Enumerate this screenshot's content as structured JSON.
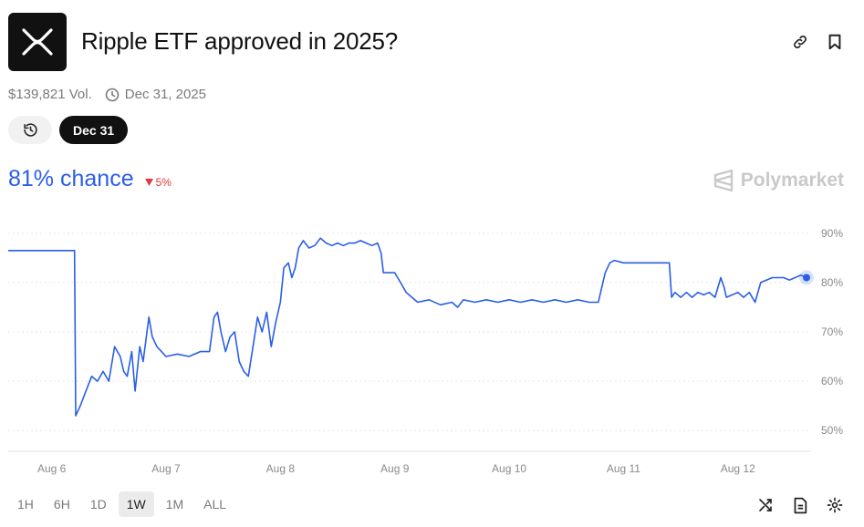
{
  "market": {
    "title": "Ripple ETF approved in 2025?",
    "logo_icon": "xrp-logo-icon",
    "volume": "$139,821 Vol.",
    "end_date": "Dec 31, 2025",
    "active_date_pill": "Dec 31",
    "chance": "81% chance",
    "change": "5%",
    "change_direction": "down",
    "brand": "Polymarket"
  },
  "header_icons": [
    "link-icon",
    "bookmark-icon"
  ],
  "time_ranges": {
    "items": [
      "1H",
      "6H",
      "1D",
      "1W",
      "1M",
      "ALL"
    ],
    "active": "1W"
  },
  "bottom_icons": [
    "shuffle-icon",
    "document-icon",
    "settings-icon"
  ],
  "colors": {
    "accent": "#2a5ee8",
    "negative": "#e0393e",
    "logo_bg": "#111111"
  },
  "chart_data": {
    "type": "line",
    "x_tick_labels": [
      "Aug 6",
      "Aug 7",
      "Aug 8",
      "Aug 9",
      "Aug 10",
      "Aug 11",
      "Aug 12"
    ],
    "y_tick_labels": [
      "90%",
      "80%",
      "70%",
      "60%",
      "50%"
    ],
    "y_ticks": [
      90,
      80,
      70,
      60,
      50
    ],
    "ylim": [
      48,
      92
    ],
    "xlim": [
      5.62,
      12.64
    ],
    "grid": true,
    "series": [
      {
        "points": [
          [
            5.62,
            86.5
          ],
          [
            6.2,
            86.5
          ],
          [
            6.21,
            53
          ],
          [
            6.25,
            55
          ],
          [
            6.3,
            58
          ],
          [
            6.35,
            61
          ],
          [
            6.4,
            60
          ],
          [
            6.45,
            62
          ],
          [
            6.5,
            60
          ],
          [
            6.55,
            67
          ],
          [
            6.6,
            65
          ],
          [
            6.63,
            62
          ],
          [
            6.66,
            61
          ],
          [
            6.7,
            66
          ],
          [
            6.73,
            58
          ],
          [
            6.77,
            67
          ],
          [
            6.8,
            64
          ],
          [
            6.85,
            73
          ],
          [
            6.88,
            69
          ],
          [
            6.92,
            67
          ],
          [
            6.96,
            66
          ],
          [
            7.0,
            65
          ],
          [
            7.1,
            65.5
          ],
          [
            7.2,
            65
          ],
          [
            7.3,
            66
          ],
          [
            7.38,
            66
          ],
          [
            7.42,
            73
          ],
          [
            7.45,
            74
          ],
          [
            7.48,
            70
          ],
          [
            7.52,
            66
          ],
          [
            7.56,
            69
          ],
          [
            7.6,
            70
          ],
          [
            7.64,
            64
          ],
          [
            7.68,
            62
          ],
          [
            7.72,
            61
          ],
          [
            7.76,
            67
          ],
          [
            7.8,
            73
          ],
          [
            7.84,
            70
          ],
          [
            7.88,
            74
          ],
          [
            7.92,
            67
          ],
          [
            7.96,
            72
          ],
          [
            8.0,
            76
          ],
          [
            8.03,
            83
          ],
          [
            8.07,
            84
          ],
          [
            8.1,
            81
          ],
          [
            8.13,
            83
          ],
          [
            8.16,
            87
          ],
          [
            8.2,
            88.5
          ],
          [
            8.25,
            87
          ],
          [
            8.3,
            87.5
          ],
          [
            8.35,
            89
          ],
          [
            8.4,
            88
          ],
          [
            8.45,
            87.5
          ],
          [
            8.5,
            88
          ],
          [
            8.55,
            87.5
          ],
          [
            8.6,
            88
          ],
          [
            8.65,
            88
          ],
          [
            8.7,
            88.5
          ],
          [
            8.75,
            88
          ],
          [
            8.8,
            87.5
          ],
          [
            8.85,
            88
          ],
          [
            8.88,
            86
          ],
          [
            8.9,
            82
          ],
          [
            9.0,
            82
          ],
          [
            9.05,
            80
          ],
          [
            9.1,
            78
          ],
          [
            9.15,
            77
          ],
          [
            9.2,
            76
          ],
          [
            9.3,
            76.5
          ],
          [
            9.4,
            75.5
          ],
          [
            9.5,
            76
          ],
          [
            9.55,
            75
          ],
          [
            9.6,
            76.5
          ],
          [
            9.7,
            76
          ],
          [
            9.8,
            76.5
          ],
          [
            9.9,
            76
          ],
          [
            10.0,
            76.5
          ],
          [
            10.1,
            76
          ],
          [
            10.2,
            76.5
          ],
          [
            10.3,
            76
          ],
          [
            10.4,
            76.5
          ],
          [
            10.5,
            76
          ],
          [
            10.6,
            76.5
          ],
          [
            10.7,
            76
          ],
          [
            10.78,
            76
          ],
          [
            10.8,
            78
          ],
          [
            10.84,
            82
          ],
          [
            10.88,
            84
          ],
          [
            10.92,
            84.5
          ],
          [
            11.0,
            84
          ],
          [
            11.1,
            84
          ],
          [
            11.2,
            84
          ],
          [
            11.25,
            84
          ],
          [
            11.3,
            84
          ],
          [
            11.4,
            84
          ],
          [
            11.42,
            77
          ],
          [
            11.45,
            78
          ],
          [
            11.5,
            77
          ],
          [
            11.55,
            78
          ],
          [
            11.6,
            77
          ],
          [
            11.65,
            78
          ],
          [
            11.7,
            77.5
          ],
          [
            11.75,
            78
          ],
          [
            11.8,
            77
          ],
          [
            11.85,
            81
          ],
          [
            11.88,
            79
          ],
          [
            11.9,
            77
          ],
          [
            11.95,
            77.5
          ],
          [
            12.0,
            78
          ],
          [
            12.05,
            77
          ],
          [
            12.1,
            78
          ],
          [
            12.15,
            76
          ],
          [
            12.2,
            80
          ],
          [
            12.3,
            81
          ],
          [
            12.4,
            81
          ],
          [
            12.45,
            80.5
          ],
          [
            12.5,
            81
          ],
          [
            12.55,
            81.5
          ],
          [
            12.6,
            81
          ]
        ]
      }
    ],
    "last_value": 81
  }
}
